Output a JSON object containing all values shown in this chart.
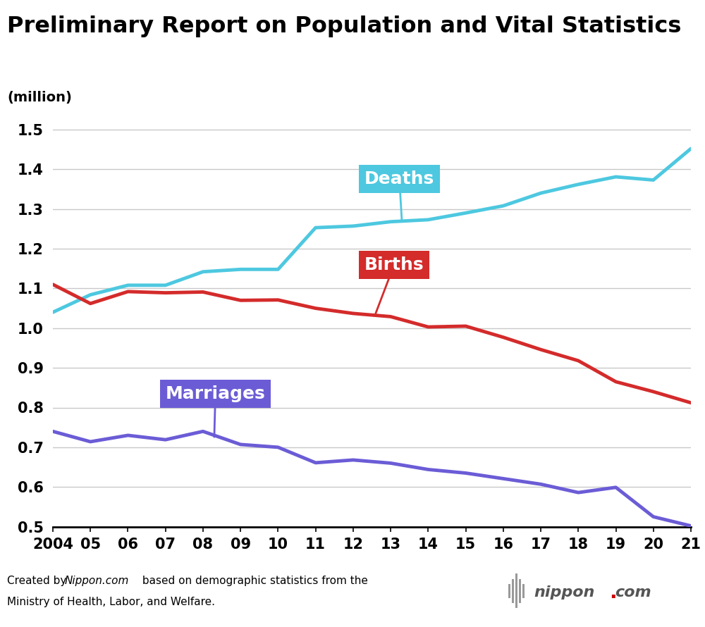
{
  "title": "Preliminary Report on Population and Vital Statistics",
  "ylabel": "(million)",
  "years": [
    2004,
    2005,
    2006,
    2007,
    2008,
    2009,
    2010,
    2011,
    2012,
    2013,
    2014,
    2015,
    2016,
    2017,
    2018,
    2019,
    2020,
    2021
  ],
  "deaths": [
    1.04,
    1.084,
    1.108,
    1.108,
    1.142,
    1.148,
    1.148,
    1.253,
    1.257,
    1.268,
    1.273,
    1.29,
    1.308,
    1.34,
    1.362,
    1.381,
    1.373,
    1.452
  ],
  "births": [
    1.11,
    1.062,
    1.092,
    1.089,
    1.091,
    1.07,
    1.071,
    1.05,
    1.037,
    1.029,
    1.003,
    1.005,
    0.977,
    0.946,
    0.918,
    0.865,
    0.84,
    0.812
  ],
  "marriages": [
    0.74,
    0.714,
    0.73,
    0.719,
    0.74,
    0.707,
    0.7,
    0.661,
    0.668,
    0.66,
    0.644,
    0.635,
    0.621,
    0.607,
    0.586,
    0.599,
    0.525,
    0.502
  ],
  "deaths_color": "#4DC8E0",
  "births_color": "#D42B2B",
  "marriages_color": "#6B5CD6",
  "background_color": "#FFFFFF",
  "grid_color": "#C8C8C8",
  "ylim": [
    0.5,
    1.55
  ],
  "yticks": [
    0.5,
    0.6,
    0.7,
    0.8,
    0.9,
    1.0,
    1.1,
    1.2,
    1.3,
    1.4,
    1.5
  ],
  "line_width": 3.5,
  "title_fontsize": 23,
  "ylabel_fontsize": 14,
  "tick_fontsize": 15,
  "annotation_fontsize": 18,
  "footer_fontsize": 11
}
